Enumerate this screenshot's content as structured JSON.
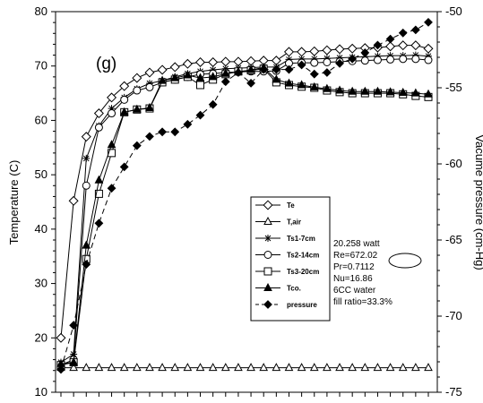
{
  "chart_data": {
    "type": "line",
    "panel_label": "(g)",
    "ylabel": "Temperature (C)",
    "y2label": "Vacume pressure (cm-Hg)",
    "xlabel": "",
    "ylim": [
      10,
      80
    ],
    "y2lim": [
      -75,
      -50
    ],
    "yticks": [
      10,
      20,
      30,
      40,
      50,
      60,
      70,
      80
    ],
    "y2ticks": [
      -75,
      -70,
      -65,
      -60,
      -55,
      -50
    ],
    "ytick_labels": [
      "10",
      "20",
      "30",
      "40",
      "50",
      "60",
      "70",
      "80"
    ],
    "y2tick_labels": [
      "-75",
      "-70",
      "-65",
      "-60",
      "-55",
      "-50"
    ],
    "x_tick_count": 30,
    "grid": false,
    "legend_position": "right",
    "x": [
      0,
      1,
      2,
      3,
      4,
      5,
      6,
      7,
      8,
      9,
      10,
      11,
      12,
      13,
      14,
      15,
      16,
      17,
      18,
      19,
      20,
      21,
      22,
      23,
      24,
      25,
      26,
      27,
      28,
      29
    ],
    "series": [
      {
        "name": "Te",
        "axis": "left",
        "marker": "diamond-open",
        "line": "solid",
        "values": [
          20,
          45.2,
          57,
          61.3,
          64.2,
          66.3,
          67.8,
          68.8,
          69.3,
          69.8,
          70.4,
          70.7,
          70.7,
          70.8,
          70.8,
          70.9,
          71,
          71,
          72.6,
          72.6,
          72.7,
          72.9,
          73.1,
          73.2,
          73.3,
          73.4,
          73.6,
          73.8,
          73.8,
          73.2
        ]
      },
      {
        "name": "T,air",
        "axis": "left",
        "marker": "triangle-open",
        "line": "solid",
        "values": [
          14.5,
          14.5,
          14.5,
          14.5,
          14.5,
          14.5,
          14.5,
          14.5,
          14.5,
          14.5,
          14.5,
          14.5,
          14.5,
          14.5,
          14.5,
          14.5,
          14.5,
          14.5,
          14.5,
          14.5,
          14.5,
          14.5,
          14.5,
          14.5,
          14.5,
          14.5,
          14.5,
          14.5,
          14.5,
          14.5
        ]
      },
      {
        "name": "Ts1-7cm",
        "axis": "left",
        "marker": "asterisk",
        "line": "solid",
        "values": [
          15.5,
          17,
          53,
          59,
          62.2,
          64.2,
          65.8,
          66.8,
          67.3,
          68,
          68.6,
          69,
          69.3,
          69.5,
          69.6,
          69.7,
          69.8,
          69.8,
          71.2,
          71.3,
          71.3,
          71.4,
          71.5,
          71.6,
          71.7,
          71.8,
          71.9,
          71.9,
          72,
          71.8
        ]
      },
      {
        "name": "Ts2-14cm",
        "axis": "left",
        "marker": "circle-open",
        "line": "solid",
        "values": [
          15,
          16,
          48,
          58.7,
          61.3,
          63.8,
          65.5,
          66.1,
          67,
          67.5,
          68,
          68.5,
          68.6,
          68.8,
          68.9,
          69,
          69,
          69.1,
          70.5,
          70.6,
          70.6,
          70.7,
          70.8,
          70.9,
          71,
          71.1,
          71.2,
          71.3,
          71.3,
          71.1
        ]
      },
      {
        "name": "Ts3-20cm",
        "axis": "left",
        "marker": "square-open",
        "line": "solid",
        "values": [
          15,
          15.5,
          34.5,
          46.5,
          54,
          61.5,
          62,
          62.2,
          67,
          67.5,
          68,
          66.5,
          67.5,
          68.5,
          69,
          69.2,
          69.5,
          67,
          66.5,
          66.2,
          66,
          65.5,
          65.2,
          65,
          65,
          65,
          65,
          64.8,
          64.5,
          64.3
        ]
      },
      {
        "name": "Tco.",
        "axis": "left",
        "marker": "triangle-filled",
        "line": "solid",
        "values": [
          15.2,
          15.5,
          37,
          49,
          55.5,
          61.5,
          62,
          62.3,
          67.3,
          67.8,
          68.3,
          67.8,
          68,
          68.6,
          68.9,
          69.3,
          69.7,
          67.5,
          66.8,
          66.5,
          66.1,
          65.8,
          65.5,
          65.3,
          65.3,
          65.3,
          65.2,
          65.1,
          65,
          64.8
        ]
      },
      {
        "name": "pressure",
        "axis": "right",
        "marker": "diamond-filled",
        "line": "dashed",
        "values": [
          -73.5,
          -70.6,
          -66.6,
          -63.9,
          -61.6,
          -60.2,
          -58.8,
          -58.2,
          -57.9,
          -57.9,
          -57.4,
          -56.8,
          -56.1,
          -54.6,
          -54,
          -54.7,
          -53.8,
          -53.8,
          -53.8,
          -53.5,
          -54.1,
          -54,
          -53.4,
          -53.1,
          -52.7,
          -52.2,
          -51.8,
          -51.4,
          -51.2,
          -50.7
        ]
      }
    ],
    "annotation": [
      "20.258 watt",
      "Re=672.02",
      "Pr=0.7112",
      "Nu=16.86",
      "6CC water",
      "fill ratio=33.3%"
    ]
  }
}
